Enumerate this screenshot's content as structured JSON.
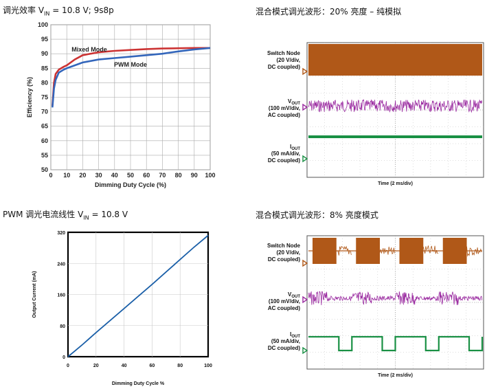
{
  "titles": {
    "p1": "调光效率 V",
    "p1_sub": "IN",
    "p1_rest": " = 10.8 V; 9s8p",
    "p2": "混合模式调光波形：20% 亮度 – 纯模拟",
    "p3": "PWM 调光电流线性 V",
    "p3_sub": "IN",
    "p3_rest": " = 10.8 V",
    "p4": "混合模式调光波形：8% 亮度模式"
  },
  "chart_data": [
    {
      "type": "line",
      "xlabel": "Dimming Duty Cycle (%)",
      "ylabel": "Efficiency (%)",
      "xlim": [
        0,
        100
      ],
      "ylim": [
        50,
        100
      ],
      "xticks": [
        "0",
        "10",
        "20",
        "30",
        "40",
        "50",
        "60",
        "70",
        "80",
        "90",
        "100"
      ],
      "yticks": [
        "50",
        "55",
        "60",
        "65",
        "70",
        "75",
        "80",
        "85",
        "90",
        "95",
        "100"
      ],
      "grid": true,
      "series": [
        {
          "name": "Mixed Mode",
          "color": "#cc3333",
          "x": [
            1,
            2,
            3,
            5,
            8,
            10,
            15,
            20,
            30,
            40,
            50,
            60,
            70,
            80,
            90,
            100
          ],
          "y": [
            72,
            80,
            83,
            84.5,
            85.5,
            86,
            88,
            89.5,
            90.5,
            91,
            91.3,
            91.6,
            91.8,
            91.9,
            92,
            92
          ]
        },
        {
          "name": "PWM Mode",
          "color": "#3366bb",
          "x": [
            1,
            2,
            3,
            5,
            8,
            10,
            15,
            20,
            30,
            40,
            50,
            60,
            70,
            80,
            90,
            100
          ],
          "y": [
            71.5,
            78,
            81,
            83.5,
            84.5,
            85,
            86,
            87,
            88,
            88.5,
            89,
            89.5,
            90,
            90.8,
            91.5,
            92
          ]
        }
      ]
    },
    {
      "type": "line",
      "xlabel": "Dimming Duty Cycle %",
      "ylabel": "Output Current (mA)",
      "xlim": [
        0,
        100
      ],
      "ylim": [
        0,
        320
      ],
      "xticks": [
        "0",
        "20",
        "40",
        "60",
        "80",
        "100"
      ],
      "yticks": [
        "0",
        "80",
        "160",
        "240",
        "320"
      ],
      "grid": true,
      "series": [
        {
          "color": "#1a5fa8",
          "x": [
            0,
            10,
            20,
            30,
            40,
            50,
            60,
            70,
            80,
            90,
            100
          ],
          "y": [
            0,
            30,
            62,
            93,
            124,
            155,
            186,
            218,
            250,
            282,
            312
          ]
        }
      ]
    },
    {
      "type": "line",
      "xlabel": "Time (2 ms/div)",
      "grid": true,
      "traces": [
        {
          "label": "Switch Node",
          "label2": "(20 V/div,",
          "label3": "DC coupled)",
          "color": "#b05818",
          "pattern": "continuous"
        },
        {
          "label": "V",
          "sub": "OUT",
          "label2": "(100 mV/div,",
          "label3": "AC coupled)",
          "color": "#9a2aa0",
          "pattern": "noise"
        },
        {
          "label": "I",
          "sub": "OUT",
          "label2": "(50 mA/div,",
          "label3": "DC coupled)",
          "color": "#199044",
          "pattern": "flat"
        }
      ]
    },
    {
      "type": "line",
      "xlabel": "Time (2 ms/div)",
      "grid": true,
      "traces": [
        {
          "label": "Switch Node",
          "label2": "(20 V/div,",
          "label3": "DC coupled)",
          "color": "#b05818",
          "pattern": "bursts"
        },
        {
          "label": "V",
          "sub": "OUT",
          "label2": "(100 mV/div,",
          "label3": "AC coupled)",
          "color": "#9a2aa0",
          "pattern": "burst-noise"
        },
        {
          "label": "I",
          "sub": "OUT",
          "label2": "(50 mA/div,",
          "label3": "DC coupled)",
          "color": "#199044",
          "pattern": "square"
        }
      ]
    }
  ]
}
